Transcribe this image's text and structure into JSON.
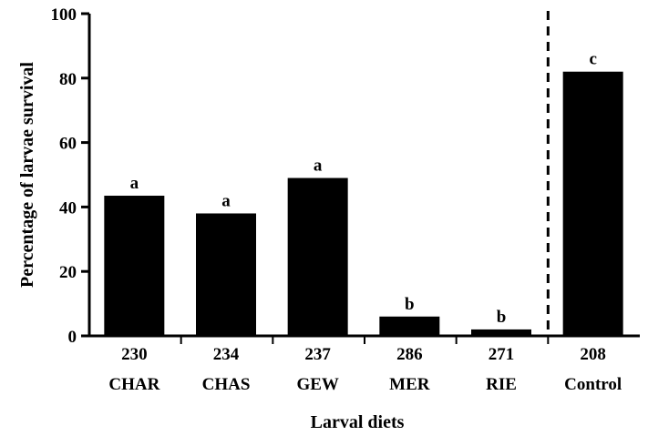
{
  "chart_data": {
    "type": "bar",
    "title": "",
    "xlabel": "Larval diets",
    "ylabel": "Percentage of larvae survival",
    "ylim": [
      0,
      100
    ],
    "yticks": [
      "0",
      "20",
      "40",
      "60",
      "80",
      "100"
    ],
    "categories": [
      "CHAR",
      "CHAS",
      "GEW",
      "MER",
      "RIE",
      "Control"
    ],
    "sample_sizes": [
      "230",
      "234",
      "237",
      "286",
      "271",
      "208"
    ],
    "values": [
      43.5,
      38,
      49,
      6,
      2,
      82
    ],
    "significance_letters": [
      "a",
      "a",
      "a",
      "b",
      "b",
      "c"
    ],
    "separator_after_index": 4,
    "separator_style": "dashed",
    "bar_color": "#000000",
    "grid": false,
    "legend": "none"
  }
}
